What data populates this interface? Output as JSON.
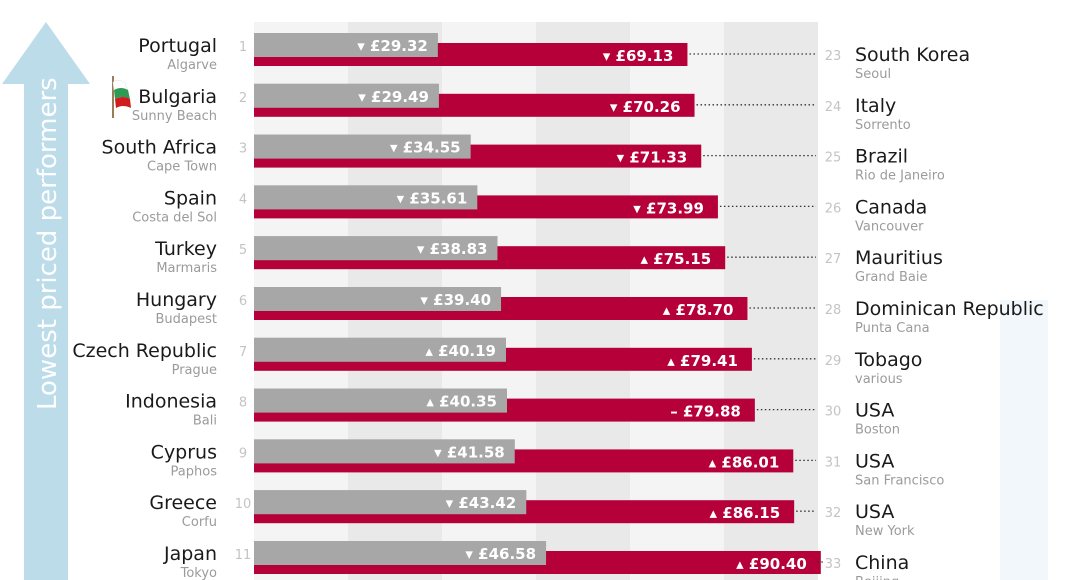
{
  "side_label": "Lowest priced performers",
  "colors": {
    "grey_bar": "#a7a7a7",
    "red_bar": "#b5003a",
    "arrow": "#bcdcea",
    "band_light": "#f4f4f4",
    "band_dark": "#e9e9e9"
  },
  "chart_data": {
    "type": "bar",
    "currency": "£",
    "xlim": [
      0,
      150
    ],
    "left_series": {
      "rows": [
        {
          "rank": "1",
          "country": "Portugal",
          "place": "Algarve",
          "value": 29.32,
          "trend": "down"
        },
        {
          "rank": "2",
          "country": "Bulgaria",
          "place": "Sunny Beach",
          "value": 29.49,
          "trend": "down"
        },
        {
          "rank": "3",
          "country": "South Africa",
          "place": "Cape Town",
          "value": 34.55,
          "trend": "down"
        },
        {
          "rank": "4",
          "country": "Spain",
          "place": "Costa del Sol",
          "value": 35.61,
          "trend": "down"
        },
        {
          "rank": "5",
          "country": "Turkey",
          "place": "Marmaris",
          "value": 38.83,
          "trend": "down"
        },
        {
          "rank": "6",
          "country": "Hungary",
          "place": "Budapest",
          "value": 39.4,
          "trend": "down"
        },
        {
          "rank": "7",
          "country": "Czech Republic",
          "place": "Prague",
          "value": 40.19,
          "trend": "up"
        },
        {
          "rank": "8",
          "country": "Indonesia",
          "place": "Bali",
          "value": 40.35,
          "trend": "up"
        },
        {
          "rank": "9",
          "country": "Cyprus",
          "place": "Paphos",
          "value": 41.58,
          "trend": "down"
        },
        {
          "rank": "10",
          "country": "Greece",
          "place": "Corfu",
          "value": 43.42,
          "trend": "down"
        },
        {
          "rank": "11",
          "country": "Japan",
          "place": "Tokyo",
          "value": 46.58,
          "trend": "down"
        }
      ]
    },
    "right_series": {
      "rows": [
        {
          "rank": "23",
          "country": "South Korea",
          "place": "Seoul",
          "value": 69.13,
          "trend": "down"
        },
        {
          "rank": "24",
          "country": "Italy",
          "place": "Sorrento",
          "value": 70.26,
          "trend": "down"
        },
        {
          "rank": "25",
          "country": "Brazil",
          "place": "Rio de Janeiro",
          "value": 71.33,
          "trend": "down"
        },
        {
          "rank": "26",
          "country": "Canada",
          "place": "Vancouver",
          "value": 73.99,
          "trend": "down"
        },
        {
          "rank": "27",
          "country": "Mauritius",
          "place": "Grand Baie",
          "value": 75.15,
          "trend": "up"
        },
        {
          "rank": "28",
          "country": "Dominican Republic",
          "place": "Punta Cana",
          "value": 78.7,
          "trend": "up"
        },
        {
          "rank": "29",
          "country": "Tobago",
          "place": "various",
          "value": 79.41,
          "trend": "up"
        },
        {
          "rank": "30",
          "country": "USA",
          "place": "Boston",
          "value": 79.88,
          "trend": "same"
        },
        {
          "rank": "31",
          "country": "USA",
          "place": "San Francisco",
          "value": 86.01,
          "trend": "up"
        },
        {
          "rank": "32",
          "country": "USA",
          "place": "New York",
          "value": 86.15,
          "trend": "up"
        },
        {
          "rank": "33",
          "country": "China",
          "place": "Beijing",
          "value": 90.4,
          "trend": "up"
        }
      ]
    }
  }
}
